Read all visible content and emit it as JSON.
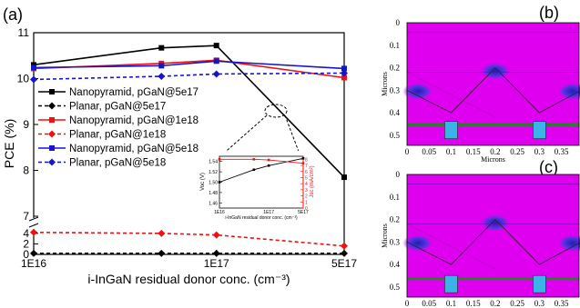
{
  "panels": {
    "a": {
      "label": "(a)"
    },
    "b": {
      "label": "(b)"
    },
    "c": {
      "label": "(c)"
    }
  },
  "colors": {
    "black": "#000000",
    "red": "#ee1111",
    "blue": "#1515cc",
    "simulation_background": "#e000f0",
    "contact_pad": "#3ab3e8",
    "band": "#1a8a1a"
  },
  "chart_data": [
    {
      "type": "line",
      "panel": "(a)",
      "xlabel": "i-InGaN residual donor conc. (cm⁻³)",
      "ylabel": "PCE (%)",
      "x_scale": "log",
      "x_ticks": [
        "1E16",
        "1E17",
        "5E17"
      ],
      "x": [
        1e+16,
        5e+16,
        1e+17,
        5e+17
      ],
      "y_axis_break": {
        "lower": [
          0,
          4.5
        ],
        "upper": [
          7,
          11
        ]
      },
      "y_ticks": [
        "0",
        "2",
        "4",
        "7",
        "8",
        "9",
        "10",
        "11"
      ],
      "legend_position": "left",
      "series": [
        {
          "name": "Nanopyramid, pGaN@5e17",
          "color": "#000000",
          "marker": "square",
          "line": "solid",
          "values": [
            10.3,
            10.67,
            10.72,
            7.85
          ]
        },
        {
          "name": "Planar, pGaN@5e17",
          "color": "#000000",
          "marker": "diamond",
          "line": "dashed",
          "values": [
            0.2,
            0.2,
            0.2,
            0.2
          ]
        },
        {
          "name": "Nanopyramid, pGaN@1e18",
          "color": "#ee1111",
          "marker": "square",
          "line": "solid",
          "values": [
            10.22,
            10.33,
            10.4,
            10.02
          ]
        },
        {
          "name": "Planar, pGaN@1e18",
          "color": "#ee1111",
          "marker": "diamond",
          "line": "dashed",
          "values": [
            4.2,
            4.0,
            3.7,
            1.6
          ]
        },
        {
          "name": "Nanopyramid, pGaN@5e18",
          "color": "#1515cc",
          "marker": "square",
          "line": "solid",
          "values": [
            10.24,
            10.28,
            10.38,
            10.22
          ]
        },
        {
          "name": "Planar, pGaN@5e18",
          "color": "#1515cc",
          "marker": "diamond",
          "line": "dashed",
          "values": [
            9.98,
            10.05,
            10.1,
            10.12
          ]
        }
      ]
    },
    {
      "type": "line",
      "panel": "inset of (a)",
      "xlabel": "i-InGaN residual donor conc. (cm⁻³)",
      "ylabel_left": "Voc (V)",
      "ylabel_right": "Jsc (mA/cm²)",
      "x_ticks": [
        "1E16",
        "1E17",
        "5E17"
      ],
      "y_left_ticks": [
        "1.46",
        "1.48",
        "1.50",
        "1.52",
        "1.54"
      ],
      "y_right_ticks": [
        "0",
        "1",
        "2",
        "3",
        "4",
        "5",
        "6",
        "7",
        "8"
      ],
      "x": [
        1e+16,
        5e+16,
        1e+17,
        5e+17
      ],
      "series": [
        {
          "axis": "left",
          "color": "#000000",
          "values": [
            1.5,
            1.524,
            1.532,
            1.546
          ]
        },
        {
          "axis": "right",
          "color": "#ee1111",
          "values": [
            8.0,
            8.0,
            7.9,
            7.35
          ]
        }
      ]
    },
    {
      "type": "heatmap",
      "panel": "(b)",
      "xlabel": "Microns",
      "ylabel": "Microns",
      "x_ticks": [
        "0",
        "0.05",
        "0.1",
        "0.15",
        "0.2",
        "0.25",
        "0.3",
        "0.35"
      ],
      "y_ticks": [
        "0",
        "0.1",
        "0.2",
        "0.3",
        "0.4",
        "0.5"
      ]
    },
    {
      "type": "heatmap",
      "panel": "(c)",
      "xlabel": "Microns",
      "ylabel": "Microns",
      "x_ticks": [
        "0",
        "0.05",
        "0.1",
        "0.15",
        "0.2",
        "0.25",
        "0.3",
        "0.35"
      ],
      "y_ticks": [
        "0",
        "0.1",
        "0.2",
        "0.3",
        "0.4",
        "0.5"
      ]
    }
  ]
}
